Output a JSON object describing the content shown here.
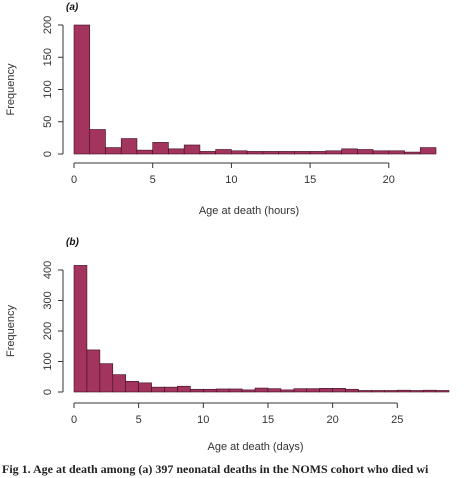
{
  "caption": "Fig 1.  Age at death among (a) 397 neonatal deaths in the NOMS cohort who died wi",
  "colors": {
    "bar_fill": "#a3345e",
    "bar_stroke": "#3a1020",
    "axis": "#333333"
  },
  "chart_data": [
    {
      "type": "bar",
      "panel_label": "(a)",
      "xlabel": "Age at death (hours)",
      "ylabel": "Frequency",
      "bin_width": 1,
      "x_start": 0,
      "xlim": [
        0,
        23
      ],
      "ylim": [
        0,
        200
      ],
      "x_ticks": [
        0,
        5,
        10,
        15,
        20
      ],
      "y_ticks": [
        0,
        50,
        100,
        150,
        200
      ],
      "grid": false,
      "values": [
        200,
        38,
        10,
        24,
        6,
        18,
        8,
        14,
        4,
        7,
        5,
        4,
        4,
        4,
        4,
        4,
        5,
        8,
        7,
        5,
        5,
        3,
        10
      ]
    },
    {
      "type": "bar",
      "panel_label": "(b)",
      "xlabel": "Age at death (days)",
      "ylabel": "Frequency",
      "bin_width": 1,
      "x_start": 0,
      "xlim": [
        0,
        29
      ],
      "ylim": [
        0,
        400
      ],
      "x_ticks": [
        0,
        5,
        10,
        15,
        20,
        25
      ],
      "y_ticks": [
        0,
        100,
        200,
        300,
        400
      ],
      "grid": false,
      "values": [
        415,
        138,
        93,
        57,
        35,
        30,
        16,
        16,
        19,
        9,
        9,
        10,
        10,
        7,
        13,
        11,
        7,
        11,
        11,
        12,
        12,
        9,
        5,
        5,
        5,
        6,
        5,
        6,
        5
      ]
    }
  ]
}
